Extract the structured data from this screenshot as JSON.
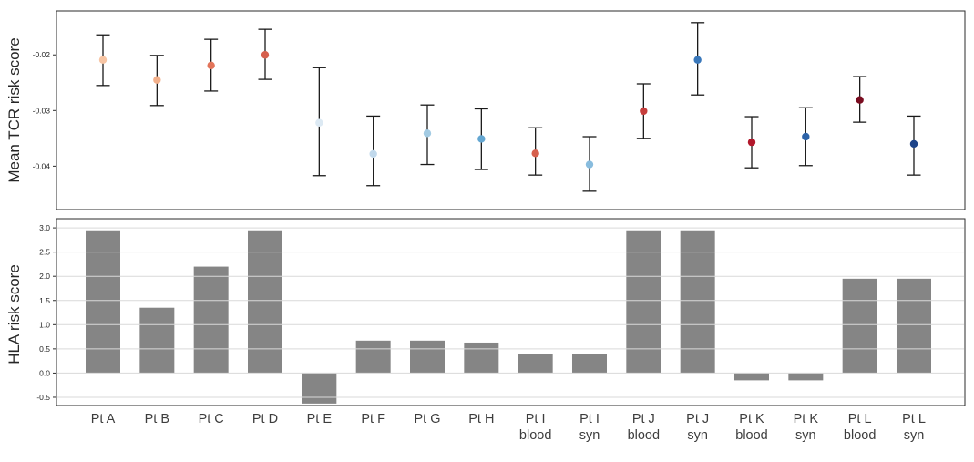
{
  "figure": {
    "background": "#ffffff",
    "text_color": "#262626",
    "label_color": "#3d3d3d",
    "spine_color": "#2b2b2b",
    "grid_color": "#d9d9d9",
    "error_bar_color": "#1a1a1a",
    "bar_color": "#858585"
  },
  "chart_data": [
    {
      "type": "scatter",
      "title": "",
      "ylabel": "Mean TCR risk score",
      "xlabel": "",
      "ylim": [
        -0.0478,
        -0.0121
      ],
      "grid": false,
      "legend": "none",
      "yticks": [
        {
          "v": -0.02,
          "label": "-0.02"
        },
        {
          "v": -0.03,
          "label": "-0.03"
        },
        {
          "v": -0.04,
          "label": "-0.04"
        }
      ],
      "categories": [
        "Pt A",
        "Pt B",
        "Pt C",
        "Pt D",
        "Pt E",
        "Pt F",
        "Pt G",
        "Pt H",
        "Pt I blood",
        "Pt I syn",
        "Pt J blood",
        "Pt J syn",
        "Pt K blood",
        "Pt K syn",
        "Pt L blood",
        "Pt L syn"
      ],
      "points": [
        {
          "y": -0.0209,
          "lo": -0.0255,
          "hi": -0.0164,
          "color": "#f7c5a4"
        },
        {
          "y": -0.0245,
          "lo": -0.0291,
          "hi": -0.0201,
          "color": "#f3b08b"
        },
        {
          "y": -0.0219,
          "lo": -0.0265,
          "hi": -0.0172,
          "color": "#e2745a"
        },
        {
          "y": -0.02,
          "lo": -0.0244,
          "hi": -0.0154,
          "color": "#d6604d"
        },
        {
          "y": -0.0322,
          "lo": -0.0417,
          "hi": -0.0223,
          "color": "#dce9f3"
        },
        {
          "y": -0.0378,
          "lo": -0.0435,
          "hi": -0.031,
          "color": "#c1d9ec"
        },
        {
          "y": -0.0341,
          "lo": -0.0397,
          "hi": -0.029,
          "color": "#a3cbe3"
        },
        {
          "y": -0.0351,
          "lo": -0.0406,
          "hi": -0.0297,
          "color": "#64a7d2"
        },
        {
          "y": -0.0377,
          "lo": -0.0416,
          "hi": -0.0331,
          "color": "#d6604d"
        },
        {
          "y": -0.0397,
          "lo": -0.0445,
          "hi": -0.0347,
          "color": "#88bcde"
        },
        {
          "y": -0.0301,
          "lo": -0.035,
          "hi": -0.0252,
          "color": "#c53e3c"
        },
        {
          "y": -0.0209,
          "lo": -0.0272,
          "hi": -0.0142,
          "color": "#3a78bb"
        },
        {
          "y": -0.0357,
          "lo": -0.0403,
          "hi": -0.0311,
          "color": "#b2182b"
        },
        {
          "y": -0.0347,
          "lo": -0.0399,
          "hi": -0.0295,
          "color": "#2d63a8"
        },
        {
          "y": -0.0281,
          "lo": -0.0321,
          "hi": -0.0239,
          "color": "#7a0c20"
        },
        {
          "y": -0.036,
          "lo": -0.0416,
          "hi": -0.031,
          "color": "#1e4489"
        }
      ]
    },
    {
      "type": "bar",
      "title": "",
      "ylabel": "HLA risk score",
      "xlabel": "",
      "ylim": [
        -0.67,
        3.19
      ],
      "grid": true,
      "legend": "none",
      "yticks": [
        {
          "v": 3.0,
          "label": "3.0"
        },
        {
          "v": 2.5,
          "label": "2.5"
        },
        {
          "v": 2.0,
          "label": "2.0"
        },
        {
          "v": 1.5,
          "label": "1.5"
        },
        {
          "v": 1.0,
          "label": "1.0"
        },
        {
          "v": 0.5,
          "label": "0.5"
        },
        {
          "v": 0.0,
          "label": "0.0"
        },
        {
          "v": -0.5,
          "label": "-0.5"
        }
      ],
      "categories": [
        {
          "line1": "Pt A",
          "line2": ""
        },
        {
          "line1": "Pt B",
          "line2": ""
        },
        {
          "line1": "Pt C",
          "line2": ""
        },
        {
          "line1": "Pt D",
          "line2": ""
        },
        {
          "line1": "Pt E",
          "line2": ""
        },
        {
          "line1": "Pt F",
          "line2": ""
        },
        {
          "line1": "Pt G",
          "line2": ""
        },
        {
          "line1": "Pt H",
          "line2": ""
        },
        {
          "line1": "Pt I",
          "line2": "blood"
        },
        {
          "line1": "Pt I",
          "line2": "syn"
        },
        {
          "line1": "Pt J",
          "line2": "blood"
        },
        {
          "line1": "Pt J",
          "line2": "syn"
        },
        {
          "line1": "Pt K",
          "line2": "blood"
        },
        {
          "line1": "Pt K",
          "line2": "syn"
        },
        {
          "line1": "Pt L",
          "line2": "blood"
        },
        {
          "line1": "Pt L",
          "line2": "syn"
        }
      ],
      "values": [
        2.95,
        1.35,
        2.2,
        2.95,
        -0.63,
        0.67,
        0.67,
        0.63,
        0.4,
        0.4,
        2.95,
        2.95,
        -0.15,
        -0.15,
        1.95,
        1.95
      ]
    }
  ]
}
